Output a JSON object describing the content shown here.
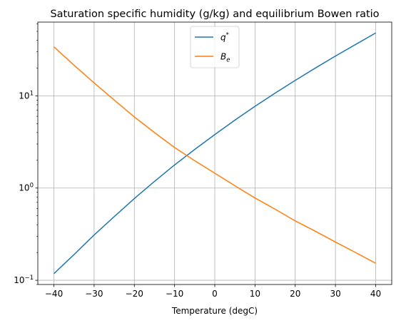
{
  "chart_data": {
    "type": "line",
    "title": "Saturation specific humidity (g/kg) and equilibrium Bowen ratio",
    "xlabel": "Temperature (degC)",
    "ylabel": "",
    "xlim": [
      -44,
      44
    ],
    "ylim": [
      0.09,
      63
    ],
    "yscale": "log",
    "grid": true,
    "legend_position": "top-center",
    "x_ticks": [
      -40,
      -30,
      -20,
      -10,
      0,
      10,
      20,
      30,
      40
    ],
    "x_tick_labels": [
      "−40",
      "−30",
      "−20",
      "−10",
      "0",
      "10",
      "20",
      "30",
      "40"
    ],
    "y_ticks": [
      {
        "value": 0.1,
        "base": "10",
        "exp": "−1"
      },
      {
        "value": 1,
        "base": "10",
        "exp": "0"
      },
      {
        "value": 10,
        "base": "10",
        "exp": "1"
      }
    ],
    "x": [
      -40,
      -35,
      -30,
      -25,
      -20,
      -15,
      -10,
      -5,
      0,
      5,
      10,
      15,
      20,
      25,
      30,
      35,
      40
    ],
    "series": [
      {
        "name": "q*",
        "label_main": "q",
        "label_sup": "*",
        "color": "#1f77b4",
        "values": [
          0.118,
          0.19,
          0.31,
          0.49,
          0.77,
          1.18,
          1.78,
          2.62,
          3.8,
          5.45,
          7.7,
          10.7,
          14.7,
          20.0,
          27.0,
          36.0,
          48.0
        ]
      },
      {
        "name": "B_e",
        "label_main": "B",
        "label_sub": "e",
        "color": "#ff7f0e",
        "values": [
          34.0,
          21.5,
          13.8,
          9.0,
          5.9,
          4.0,
          2.75,
          1.98,
          1.45,
          1.06,
          0.78,
          0.59,
          0.44,
          0.34,
          0.26,
          0.2,
          0.153
        ]
      }
    ]
  }
}
